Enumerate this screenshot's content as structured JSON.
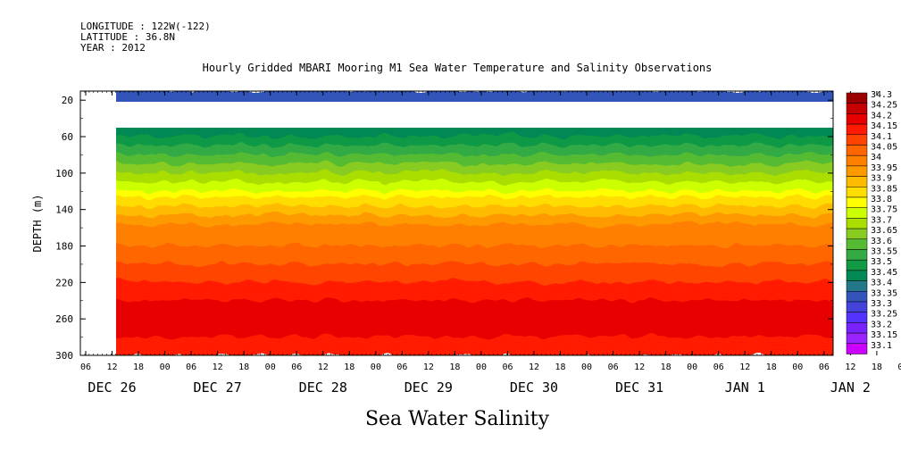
{
  "header": {
    "longitude": "LONGITUDE : 122W(-122)",
    "latitude": "LATITUDE : 36.8N",
    "year": "YEAR : 2012"
  },
  "chart_data": {
    "type": "heatmap",
    "title": "Hourly Gridded MBARI Mooring M1 Sea Water Temperature and Salinity Observations",
    "xlabel": "Sea Water Salinity",
    "ylabel": "DEPTH (m)",
    "ylim": [
      300,
      10
    ],
    "x_hour_ticks": [
      "06",
      "12",
      "18",
      "00",
      "06",
      "12",
      "18",
      "00",
      "06",
      "12",
      "18",
      "00",
      "06",
      "12",
      "18",
      "00",
      "06",
      "12",
      "18",
      "00",
      "06",
      "12",
      "18",
      "00",
      "06",
      "12",
      "18",
      "00",
      "06",
      "12",
      "18",
      "00",
      "06"
    ],
    "x_day_labels": [
      {
        "label": "DEC 26",
        "tick_index": 1
      },
      {
        "label": "DEC 27",
        "tick_index": 5
      },
      {
        "label": "DEC 28",
        "tick_index": 9
      },
      {
        "label": "DEC 29",
        "tick_index": 13
      },
      {
        "label": "DEC 30",
        "tick_index": 17
      },
      {
        "label": "DEC 31",
        "tick_index": 21
      },
      {
        "label": "JAN  1",
        "tick_index": 25
      },
      {
        "label": "JAN  2",
        "tick_index": 29
      }
    ],
    "y_ticks": [
      20,
      60,
      100,
      140,
      180,
      220,
      260,
      300
    ],
    "colorbar_levels": [
      "34.3",
      "34.25",
      "34.2",
      "34.15",
      "34.1",
      "34.05",
      "34",
      "33.95",
      "33.9",
      "33.85",
      "33.8",
      "33.75",
      "33.7",
      "33.65",
      "33.6",
      "33.55",
      "33.5",
      "33.45",
      "33.4",
      "33.35",
      "33.3",
      "33.25",
      "33.2",
      "33.15",
      "33.1"
    ],
    "colorbar_colors": [
      "#9b0000",
      "#c40000",
      "#e60000",
      "#ff1a00",
      "#ff4400",
      "#ff6600",
      "#ff8000",
      "#ff9900",
      "#ffbb00",
      "#ffdd00",
      "#ffff00",
      "#ccff00",
      "#aadd00",
      "#88cc22",
      "#55bb33",
      "#33aa44",
      "#119944",
      "#008855",
      "#227788",
      "#3355bb",
      "#4444dd",
      "#5533ff",
      "#7722ff",
      "#9922ff",
      "#cc00ff"
    ],
    "depth_profile": [
      {
        "depth": 10,
        "salinity": 33.38
      },
      {
        "depth": 40,
        "salinity": 33.42
      },
      {
        "depth": 60,
        "salinity": 33.5
      },
      {
        "depth": 80,
        "salinity": 33.6
      },
      {
        "depth": 100,
        "salinity": 33.7
      },
      {
        "depth": 120,
        "salinity": 33.8
      },
      {
        "depth": 140,
        "salinity": 33.92
      },
      {
        "depth": 160,
        "salinity": 34.02
      },
      {
        "depth": 180,
        "salinity": 34.05
      },
      {
        "depth": 200,
        "salinity": 34.1
      },
      {
        "depth": 220,
        "salinity": 34.15
      },
      {
        "depth": 240,
        "salinity": 34.2
      },
      {
        "depth": 260,
        "salinity": 34.25
      },
      {
        "depth": 280,
        "salinity": 34.2
      },
      {
        "depth": 300,
        "salinity": 34.15
      }
    ]
  }
}
